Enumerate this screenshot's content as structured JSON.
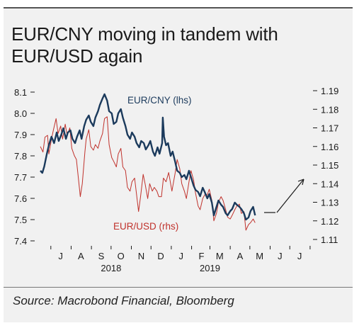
{
  "title": "EUR/CNY moving in tandem with EUR/USD again",
  "source": "Source: Macrobond Financial, Bloomberg",
  "colors": {
    "cny": "#1b3a5c",
    "usd": "#c0322c",
    "text": "#1a1a1a"
  },
  "chart_data": {
    "type": "line",
    "left_axis": {
      "ticks": [
        "8.1",
        "8.0",
        "7.9",
        "7.8",
        "7.7",
        "7.6",
        "7.5",
        "7.4"
      ],
      "range": [
        7.4,
        8.1
      ]
    },
    "right_axis": {
      "ticks": [
        "1.19",
        "1.18",
        "1.17",
        "1.16",
        "1.15",
        "1.14",
        "1.13",
        "1.12",
        "1.11"
      ],
      "range": [
        1.11,
        1.19
      ]
    },
    "x_months": [
      "J",
      "A",
      "S",
      "O",
      "N",
      "D",
      "J",
      "F",
      "M",
      "A",
      "M",
      "J",
      "J"
    ],
    "x_years": [
      "2018",
      "2019"
    ],
    "x_range": [
      "2018-06-15",
      "2019-07-31"
    ],
    "grid": false,
    "series": [
      {
        "name": "EUR/CNY (lhs)",
        "axis": "left",
        "color": "#1b3a5c",
        "points": [
          [
            "2018-06-15",
            7.73
          ],
          [
            "2018-06-18",
            7.72
          ],
          [
            "2018-06-21",
            7.75
          ],
          [
            "2018-06-25",
            7.81
          ],
          [
            "2018-06-28",
            7.85
          ],
          [
            "2018-07-02",
            7.89
          ],
          [
            "2018-07-06",
            7.86
          ],
          [
            "2018-07-10",
            7.91
          ],
          [
            "2018-07-13",
            7.87
          ],
          [
            "2018-07-17",
            7.9
          ],
          [
            "2018-07-20",
            7.93
          ],
          [
            "2018-07-24",
            7.88
          ],
          [
            "2018-07-27",
            7.91
          ],
          [
            "2018-07-31",
            7.92
          ],
          [
            "2018-08-03",
            7.88
          ],
          [
            "2018-08-07",
            7.86
          ],
          [
            "2018-08-10",
            7.89
          ],
          [
            "2018-08-14",
            7.92
          ],
          [
            "2018-08-17",
            7.88
          ],
          [
            "2018-08-21",
            7.94
          ],
          [
            "2018-08-24",
            7.97
          ],
          [
            "2018-08-28",
            7.99
          ],
          [
            "2018-08-31",
            7.96
          ],
          [
            "2018-09-04",
            7.94
          ],
          [
            "2018-09-07",
            7.98
          ],
          [
            "2018-09-11",
            8.01
          ],
          [
            "2018-09-14",
            8.04
          ],
          [
            "2018-09-18",
            8.07
          ],
          [
            "2018-09-21",
            8.09
          ],
          [
            "2018-09-25",
            8.06
          ],
          [
            "2018-09-28",
            8.01
          ],
          [
            "2018-10-02",
            8.0
          ],
          [
            "2018-10-05",
            7.95
          ],
          [
            "2018-10-09",
            7.96
          ],
          [
            "2018-10-12",
            8.0
          ],
          [
            "2018-10-16",
            8.02
          ],
          [
            "2018-10-19",
            7.98
          ],
          [
            "2018-10-23",
            7.94
          ],
          [
            "2018-10-26",
            7.9
          ],
          [
            "2018-10-30",
            7.88
          ],
          [
            "2018-11-02",
            7.91
          ],
          [
            "2018-11-06",
            7.89
          ],
          [
            "2018-11-09",
            7.86
          ],
          [
            "2018-11-13",
            7.84
          ],
          [
            "2018-11-16",
            7.87
          ],
          [
            "2018-11-20",
            7.86
          ],
          [
            "2018-11-23",
            7.83
          ],
          [
            "2018-11-27",
            7.85
          ],
          [
            "2018-11-30",
            7.87
          ],
          [
            "2018-12-04",
            7.82
          ],
          [
            "2018-12-07",
            7.8
          ],
          [
            "2018-12-11",
            7.84
          ],
          [
            "2018-12-14",
            7.81
          ],
          [
            "2018-12-18",
            7.86
          ],
          [
            "2018-12-19",
            7.98
          ],
          [
            "2018-12-21",
            7.89
          ],
          [
            "2018-12-24",
            7.85
          ],
          [
            "2018-12-27",
            7.86
          ],
          [
            "2018-12-31",
            7.8
          ],
          [
            "2019-01-03",
            7.82
          ],
          [
            "2019-01-07",
            7.77
          ],
          [
            "2019-01-10",
            7.73
          ],
          [
            "2019-01-14",
            7.72
          ],
          [
            "2019-01-17",
            7.7
          ],
          [
            "2019-01-21",
            7.71
          ],
          [
            "2019-01-24",
            7.69
          ],
          [
            "2019-01-28",
            7.73
          ],
          [
            "2019-01-31",
            7.7
          ],
          [
            "2019-02-04",
            7.66
          ],
          [
            "2019-02-07",
            7.64
          ],
          [
            "2019-02-11",
            7.63
          ],
          [
            "2019-02-14",
            7.61
          ],
          [
            "2019-02-18",
            7.65
          ],
          [
            "2019-02-21",
            7.63
          ],
          [
            "2019-02-25",
            7.6
          ],
          [
            "2019-02-28",
            7.62
          ],
          [
            "2019-03-04",
            7.58
          ],
          [
            "2019-03-07",
            7.52
          ],
          [
            "2019-03-11",
            7.56
          ],
          [
            "2019-03-14",
            7.59
          ],
          [
            "2019-03-18",
            7.57
          ],
          [
            "2019-03-21",
            7.56
          ],
          [
            "2019-03-25",
            7.53
          ],
          [
            "2019-03-28",
            7.52
          ],
          [
            "2019-04-01",
            7.54
          ],
          [
            "2019-04-04",
            7.55
          ],
          [
            "2019-04-08",
            7.58
          ],
          [
            "2019-04-11",
            7.57
          ],
          [
            "2019-04-15",
            7.56
          ],
          [
            "2019-04-18",
            7.55
          ],
          [
            "2019-04-22",
            7.53
          ],
          [
            "2019-04-25",
            7.5
          ],
          [
            "2019-04-29",
            7.51
          ],
          [
            "2019-05-02",
            7.54
          ],
          [
            "2019-05-06",
            7.56
          ],
          [
            "2019-05-09",
            7.52
          ]
        ]
      },
      {
        "name": "EUR/USD (rhs)",
        "axis": "right",
        "color": "#c0322c",
        "points": [
          [
            "2018-06-15",
            1.16
          ],
          [
            "2018-06-19",
            1.157
          ],
          [
            "2018-06-22",
            1.165
          ],
          [
            "2018-06-26",
            1.166
          ],
          [
            "2018-06-28",
            1.156
          ],
          [
            "2018-07-02",
            1.164
          ],
          [
            "2018-07-05",
            1.169
          ],
          [
            "2018-07-09",
            1.175
          ],
          [
            "2018-07-12",
            1.167
          ],
          [
            "2018-07-16",
            1.171
          ],
          [
            "2018-07-19",
            1.164
          ],
          [
            "2018-07-23",
            1.172
          ],
          [
            "2018-07-26",
            1.166
          ],
          [
            "2018-07-30",
            1.17
          ],
          [
            "2018-08-02",
            1.159
          ],
          [
            "2018-08-06",
            1.155
          ],
          [
            "2018-08-09",
            1.153
          ],
          [
            "2018-08-13",
            1.14
          ],
          [
            "2018-08-15",
            1.133
          ],
          [
            "2018-08-18",
            1.14
          ],
          [
            "2018-08-22",
            1.157
          ],
          [
            "2018-08-24",
            1.164
          ],
          [
            "2018-08-28",
            1.169
          ],
          [
            "2018-08-31",
            1.16
          ],
          [
            "2018-09-04",
            1.158
          ],
          [
            "2018-09-07",
            1.161
          ],
          [
            "2018-09-11",
            1.159
          ],
          [
            "2018-09-14",
            1.163
          ],
          [
            "2018-09-18",
            1.167
          ],
          [
            "2018-09-21",
            1.175
          ],
          [
            "2018-09-25",
            1.176
          ],
          [
            "2018-09-28",
            1.161
          ],
          [
            "2018-10-02",
            1.154
          ],
          [
            "2018-10-05",
            1.152
          ],
          [
            "2018-10-09",
            1.149
          ],
          [
            "2018-10-12",
            1.156
          ],
          [
            "2018-10-16",
            1.159
          ],
          [
            "2018-10-19",
            1.149
          ],
          [
            "2018-10-23",
            1.147
          ],
          [
            "2018-10-26",
            1.138
          ],
          [
            "2018-10-30",
            1.136
          ],
          [
            "2018-11-02",
            1.141
          ],
          [
            "2018-11-06",
            1.143
          ],
          [
            "2018-11-09",
            1.134
          ],
          [
            "2018-11-12",
            1.125
          ],
          [
            "2018-11-15",
            1.133
          ],
          [
            "2018-11-19",
            1.145
          ],
          [
            "2018-11-22",
            1.14
          ],
          [
            "2018-11-26",
            1.132
          ],
          [
            "2018-11-29",
            1.14
          ],
          [
            "2018-12-03",
            1.136
          ],
          [
            "2018-12-06",
            1.138
          ],
          [
            "2018-12-10",
            1.136
          ],
          [
            "2018-12-13",
            1.133
          ],
          [
            "2018-12-17",
            1.133
          ],
          [
            "2018-12-20",
            1.143
          ],
          [
            "2018-12-24",
            1.141
          ],
          [
            "2018-12-28",
            1.146
          ],
          [
            "2019-01-02",
            1.136
          ],
          [
            "2019-01-07",
            1.146
          ],
          [
            "2019-01-10",
            1.153
          ],
          [
            "2019-01-14",
            1.148
          ],
          [
            "2019-01-17",
            1.14
          ],
          [
            "2019-01-21",
            1.136
          ],
          [
            "2019-01-24",
            1.132
          ],
          [
            "2019-01-28",
            1.141
          ],
          [
            "2019-01-31",
            1.147
          ],
          [
            "2019-02-04",
            1.142
          ],
          [
            "2019-02-07",
            1.135
          ],
          [
            "2019-02-11",
            1.128
          ],
          [
            "2019-02-14",
            1.126
          ],
          [
            "2019-02-18",
            1.132
          ],
          [
            "2019-02-21",
            1.134
          ],
          [
            "2019-02-25",
            1.134
          ],
          [
            "2019-02-28",
            1.137
          ],
          [
            "2019-03-04",
            1.131
          ],
          [
            "2019-03-07",
            1.12
          ],
          [
            "2019-03-11",
            1.124
          ],
          [
            "2019-03-14",
            1.13
          ],
          [
            "2019-03-18",
            1.133
          ],
          [
            "2019-03-21",
            1.131
          ],
          [
            "2019-03-25",
            1.126
          ],
          [
            "2019-03-28",
            1.122
          ],
          [
            "2019-04-01",
            1.121
          ],
          [
            "2019-04-04",
            1.123
          ],
          [
            "2019-04-08",
            1.126
          ],
          [
            "2019-04-11",
            1.128
          ],
          [
            "2019-04-15",
            1.129
          ],
          [
            "2019-04-18",
            1.124
          ],
          [
            "2019-04-22",
            1.125
          ],
          [
            "2019-04-25",
            1.115
          ],
          [
            "2019-04-29",
            1.118
          ],
          [
            "2019-05-02",
            1.119
          ],
          [
            "2019-05-06",
            1.121
          ],
          [
            "2019-05-09",
            1.119
          ]
        ]
      }
    ]
  }
}
